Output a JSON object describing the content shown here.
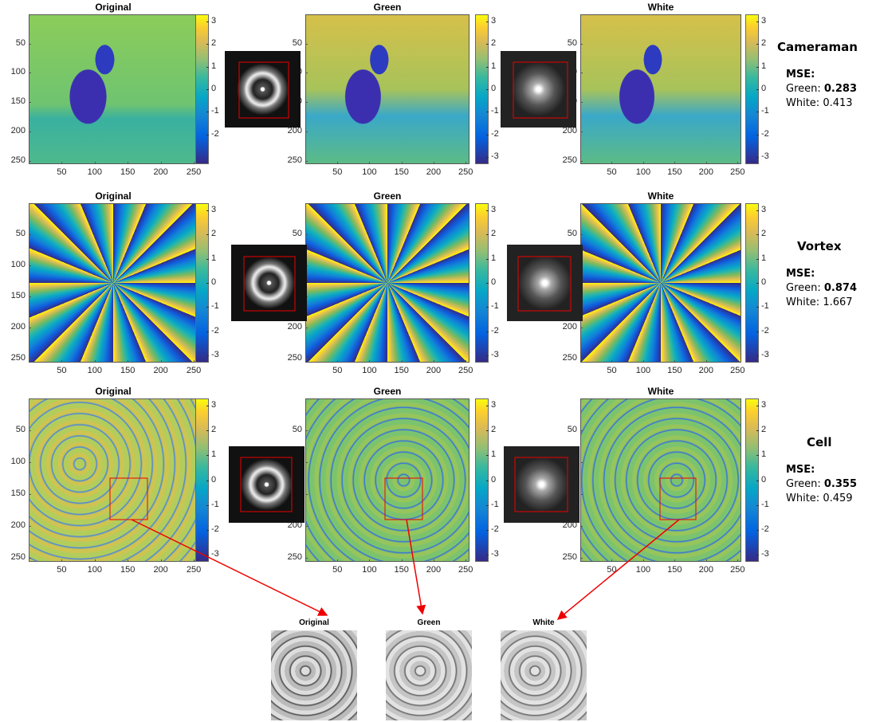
{
  "image_ticks": [
    50,
    100,
    150,
    200,
    250
  ],
  "image_lim": [
    0,
    256
  ],
  "colorbar_ticks": [
    3,
    2,
    1,
    0,
    -1,
    -2,
    -3
  ],
  "colorbar_lim": [
    -3.3,
    3.3
  ],
  "rows": [
    {
      "name": "Cameraman",
      "mse_label": "MSE:",
      "green_label": "Green:",
      "green_mse": 0.283,
      "white_label": "White:",
      "white_mse": 0.413,
      "panels": [
        {
          "title": "Original",
          "colorbar_ticks": [
            3,
            2,
            1,
            0,
            -1,
            -2
          ]
        },
        {
          "title": "Green"
        },
        {
          "title": "White"
        }
      ]
    },
    {
      "name": "Vortex",
      "mse_label": "MSE:",
      "green_label": "Green:",
      "green_mse": 0.874,
      "white_label": "White:",
      "white_mse": 1.667,
      "panels": [
        {
          "title": "Original"
        },
        {
          "title": "Green"
        },
        {
          "title": "White"
        }
      ]
    },
    {
      "name": "Cell",
      "mse_label": "MSE:",
      "green_label": "Green:",
      "green_mse": 0.355,
      "white_label": "White:",
      "white_mse": 0.459,
      "panels": [
        {
          "title": "Original"
        },
        {
          "title": "Green"
        },
        {
          "title": "White"
        }
      ]
    }
  ],
  "zoom": [
    {
      "title": "Original"
    },
    {
      "title": "Green"
    },
    {
      "title": "White"
    }
  ]
}
